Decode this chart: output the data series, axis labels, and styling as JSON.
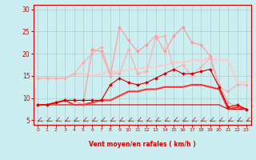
{
  "xlabel": "Vent moyen/en rafales ( km/h )",
  "xlim": [
    -0.5,
    23.5
  ],
  "ylim": [
    4,
    31
  ],
  "yticks": [
    5,
    10,
    15,
    20,
    25,
    30
  ],
  "xticks": [
    0,
    1,
    2,
    3,
    4,
    5,
    6,
    7,
    8,
    9,
    10,
    11,
    12,
    13,
    14,
    15,
    16,
    17,
    18,
    19,
    20,
    21,
    22,
    23
  ],
  "bg_color": "#cceef0",
  "grid_color": "#aacccc",
  "series": [
    {
      "x": [
        0,
        1,
        2,
        3,
        4,
        5,
        6,
        7,
        8,
        9,
        10,
        11,
        12,
        13,
        14,
        15,
        16,
        17,
        18,
        19,
        20,
        21,
        22,
        23
      ],
      "y": [
        8.5,
        8.5,
        9.0,
        9.5,
        9.5,
        8.5,
        21.0,
        20.5,
        15.0,
        26.0,
        23.0,
        20.5,
        22.0,
        24.0,
        20.5,
        24.0,
        26.0,
        22.5,
        22.0,
        19.5,
        13.0,
        9.0,
        8.0,
        7.5
      ],
      "color": "#ff9999",
      "linewidth": 0.8,
      "marker": "D",
      "markersize": 2.0,
      "zorder": 3
    },
    {
      "x": [
        0,
        1,
        2,
        3,
        4,
        5,
        6,
        7,
        8,
        9,
        10,
        11,
        12,
        13,
        14,
        15,
        16,
        17,
        18,
        19,
        20,
        21,
        22,
        23
      ],
      "y": [
        14.5,
        14.5,
        14.5,
        14.5,
        15.5,
        15.5,
        15.0,
        15.5,
        16.0,
        16.0,
        16.5,
        16.5,
        17.0,
        17.0,
        17.5,
        18.0,
        18.0,
        18.5,
        18.5,
        19.0,
        18.5,
        18.5,
        13.5,
        13.5
      ],
      "color": "#ffbbbb",
      "linewidth": 1.2,
      "marker": null,
      "markersize": 0,
      "zorder": 2
    },
    {
      "x": [
        0,
        1,
        2,
        3,
        4,
        5,
        6,
        7,
        8,
        9,
        10,
        11,
        12,
        13,
        14,
        15,
        16,
        17,
        18,
        19,
        20,
        21,
        22,
        23
      ],
      "y": [
        14.5,
        14.5,
        14.5,
        14.5,
        15.5,
        18.0,
        20.0,
        21.5,
        15.5,
        15.5,
        21.0,
        15.5,
        16.0,
        23.5,
        24.0,
        16.5,
        17.5,
        15.0,
        17.0,
        19.0,
        12.5,
        11.5,
        13.0,
        13.0
      ],
      "color": "#ffaaaa",
      "linewidth": 0.8,
      "marker": "D",
      "markersize": 2.0,
      "zorder": 3
    },
    {
      "x": [
        0,
        1,
        2,
        3,
        4,
        5,
        6,
        7,
        8,
        9,
        10,
        11,
        12,
        13,
        14,
        15,
        16,
        17,
        18,
        19,
        20,
        21,
        22,
        23
      ],
      "y": [
        14.5,
        14.5,
        14.5,
        14.5,
        15.5,
        15.5,
        15.0,
        15.5,
        16.0,
        16.0,
        16.5,
        16.5,
        17.0,
        17.0,
        17.5,
        18.0,
        18.0,
        18.5,
        18.5,
        19.0,
        18.5,
        18.5,
        13.5,
        13.5
      ],
      "color": "#ffcccc",
      "linewidth": 1.2,
      "marker": null,
      "markersize": 0,
      "zorder": 2
    },
    {
      "x": [
        0,
        1,
        2,
        3,
        4,
        5,
        6,
        7,
        8,
        9,
        10,
        11,
        12,
        13,
        14,
        15,
        16,
        17,
        18,
        19,
        20,
        21,
        22,
        23
      ],
      "y": [
        8.5,
        8.5,
        9.0,
        9.5,
        9.5,
        9.5,
        9.5,
        9.5,
        13.0,
        14.5,
        13.5,
        13.0,
        13.5,
        14.5,
        15.5,
        16.5,
        15.5,
        15.5,
        16.0,
        16.5,
        12.5,
        8.0,
        8.5,
        7.5
      ],
      "color": "#cc0000",
      "linewidth": 0.8,
      "marker": "D",
      "markersize": 2.0,
      "zorder": 4
    },
    {
      "x": [
        0,
        1,
        2,
        3,
        4,
        5,
        6,
        7,
        8,
        9,
        10,
        11,
        12,
        13,
        14,
        15,
        16,
        17,
        18,
        19,
        20,
        21,
        22,
        23
      ],
      "y": [
        8.5,
        8.5,
        9.0,
        9.5,
        8.5,
        8.5,
        9.0,
        9.5,
        9.5,
        10.5,
        11.5,
        11.5,
        12.0,
        12.0,
        12.5,
        12.5,
        12.5,
        13.0,
        13.0,
        12.5,
        12.0,
        7.5,
        8.0,
        7.5
      ],
      "color": "#ff3333",
      "linewidth": 1.5,
      "marker": null,
      "markersize": 0,
      "zorder": 3
    },
    {
      "x": [
        0,
        1,
        2,
        3,
        4,
        5,
        6,
        7,
        8,
        9,
        10,
        11,
        12,
        13,
        14,
        15,
        16,
        17,
        18,
        19,
        20,
        21,
        22,
        23
      ],
      "y": [
        8.5,
        8.5,
        8.5,
        8.5,
        8.5,
        8.5,
        8.5,
        8.5,
        8.5,
        8.5,
        8.5,
        8.5,
        8.5,
        8.5,
        8.5,
        8.5,
        8.5,
        8.5,
        8.5,
        8.5,
        8.5,
        7.5,
        7.5,
        7.5
      ],
      "color": "#cc0000",
      "linewidth": 0.8,
      "marker": null,
      "markersize": 0,
      "zorder": 2
    }
  ],
  "arrow_color": "#cc0000",
  "xlabel_color": "#cc0000",
  "tick_color": "#cc0000"
}
